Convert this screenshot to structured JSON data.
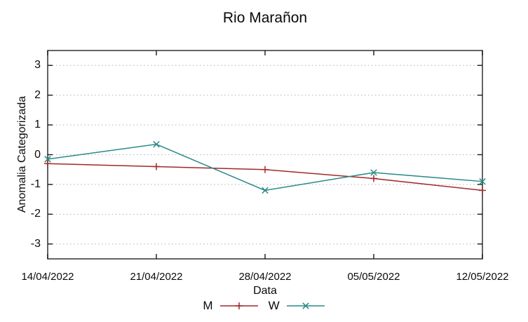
{
  "chart_data": {
    "type": "line",
    "title": "Rio Marañon",
    "xlabel": "Data",
    "ylabel": "Anomalia Categorizada",
    "categories": [
      "14/04/2022",
      "21/04/2022",
      "28/04/2022",
      "05/05/2022",
      "12/05/2022"
    ],
    "yticks": [
      -3,
      -2,
      -1,
      0,
      1,
      2,
      3
    ],
    "ylim": [
      -3.5,
      3.5
    ],
    "grid": "horizontal dotted gridlines, no vertical gridlines",
    "legend_position": "below x-axis label, centered",
    "series": [
      {
        "name": "M",
        "marker": "plus",
        "color": "#a12929",
        "values": [
          -0.3,
          -0.4,
          -0.5,
          -0.8,
          -1.2
        ]
      },
      {
        "name": "W",
        "marker": "cross",
        "color": "#2a8a8a",
        "values": [
          -0.15,
          0.35,
          -1.2,
          -0.6,
          -0.9
        ]
      }
    ]
  },
  "colors": {
    "grid": "#b3b3b3",
    "frame": "#3d3d3d",
    "tick": "#1a1a1a",
    "text": "#0a0a0a",
    "background": "#ffffff"
  }
}
